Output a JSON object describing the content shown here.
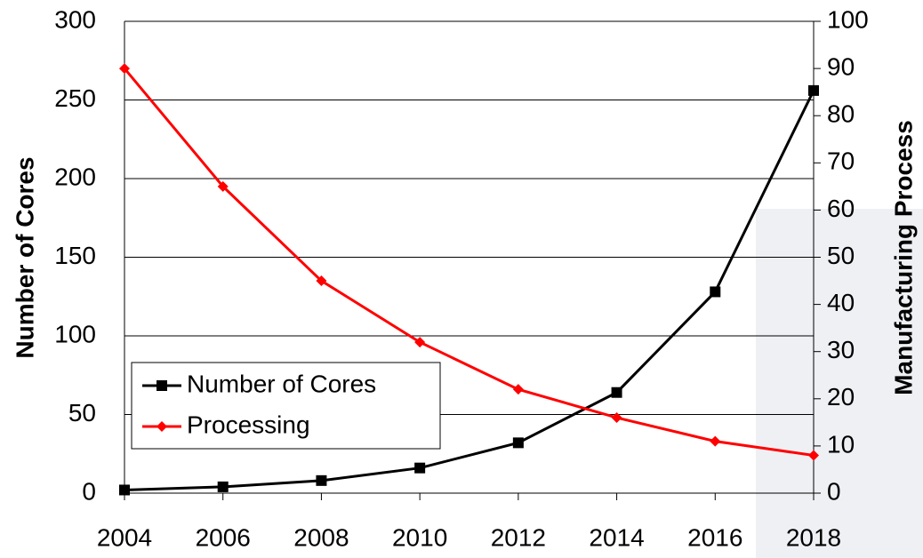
{
  "chart_data": {
    "type": "line",
    "y_label": "Number of Cores",
    "y2_label": "Manufacturing Process",
    "x": [
      2004,
      2006,
      2008,
      2010,
      2012,
      2014,
      2016,
      2018
    ],
    "xlim": [
      2004,
      2018
    ],
    "xticks": [
      2004,
      2006,
      2008,
      2010,
      2012,
      2014,
      2016,
      2018
    ],
    "ylim": [
      0,
      300
    ],
    "yticks": [
      0,
      50,
      100,
      150,
      200,
      250,
      300
    ],
    "y2lim": [
      0,
      100
    ],
    "y2ticks": [
      0,
      10,
      20,
      30,
      40,
      50,
      60,
      70,
      80,
      90,
      100
    ],
    "grid": true,
    "legend": "lower left",
    "series": [
      {
        "name": "Number of Cores",
        "color": "#000000",
        "marker": "square",
        "values": [
          2,
          4,
          8,
          16,
          32,
          64,
          128,
          256
        ]
      },
      {
        "name": "Processing",
        "color": "#ff0000",
        "marker": "diamond",
        "axis": "y2",
        "values": [
          90,
          65,
          45,
          32,
          22,
          16,
          11,
          8
        ]
      }
    ]
  }
}
